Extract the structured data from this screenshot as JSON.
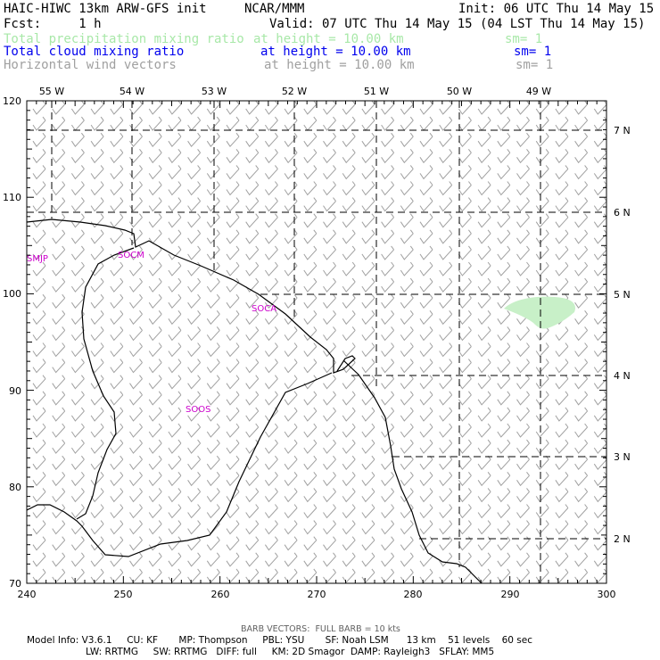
{
  "header": {
    "model_title": "HAIC-HIWC 13km ARW-GFS init",
    "center": "NCAR/MMM",
    "init": "Init: 06 UTC Thu 14 May 15",
    "fcst": "Fcst:     1 h",
    "valid": "Valid: 07 UTC Thu 14 May 15 (04 LST Thu 14 May 15)"
  },
  "fields": [
    {
      "name": "Total precipitation mixing ratio",
      "height": "at height = 10.00 km",
      "sm": "sm= 1",
      "color": "#a8e8a8"
    },
    {
      "name": "Total cloud mixing ratio",
      "height": "at height = 10.00 km",
      "sm": "sm= 1",
      "color": "#0000ee"
    },
    {
      "name": "Horizontal wind vectors",
      "height": "at height = 10.00 km",
      "sm": "sm= 1",
      "color": "#a0a0a0"
    }
  ],
  "axes": {
    "x_ticks": [
      "240",
      "250",
      "260",
      "270",
      "280",
      "290",
      "300"
    ],
    "y_ticks": [
      "70",
      "80",
      "90",
      "100",
      "110",
      "120"
    ],
    "lon_labels": [
      "55 W",
      "54 W",
      "53 W",
      "52 W",
      "51 W",
      "50 W",
      "49 W"
    ],
    "lat_labels": [
      "7 N",
      "6 N",
      "5 N",
      "4 N",
      "3 N",
      "2 N"
    ]
  },
  "stations": [
    "SMJP",
    "SOCM",
    "SOCA",
    "SOOS"
  ],
  "barb_note": "BARB VECTORS:  FULL BARB = 10 kts",
  "model_info": {
    "line1": "Model Info: V3.6.1     CU: KF       MP: Thompson     PBL: YSU       SF: Noah LSM      13 km    51 levels    60 sec",
    "line2": "LW: RRTMG     SW: RRTMG   DIFF: full     KM: 2D Smagor  DAMP: Rayleigh3   SFLAY: MM5"
  },
  "colors": {
    "precip_fill": "#c8f0c8",
    "station_label": "#cc00cc",
    "wind_barb": "#a0a0a0"
  }
}
